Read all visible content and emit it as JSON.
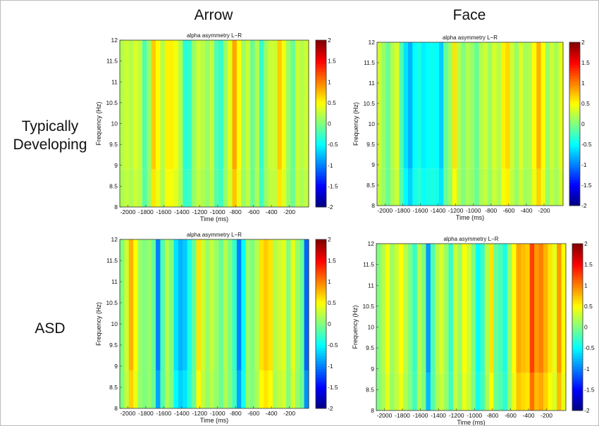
{
  "column_titles": [
    "Arrow",
    "Face"
  ],
  "row_titles": [
    [
      "Typically",
      "Developing"
    ],
    [
      "ASD"
    ]
  ],
  "chart_data": [
    {
      "type": "heatmap",
      "panel": "Typically Developing / Arrow",
      "title": "alpha asymmetry L−R",
      "xlabel": "Time (ms)",
      "ylabel": "Frequency (Hz)",
      "xlim": [
        -2090,
        15
      ],
      "ylim": [
        8,
        12
      ],
      "clim": [
        -2,
        2
      ],
      "colormap": "jet",
      "xticks": [
        -2000,
        -1800,
        -1600,
        -1400,
        -1200,
        -1000,
        -800,
        -600,
        -400,
        -200
      ],
      "yticks": [
        8,
        8.5,
        9,
        9.5,
        10,
        10.5,
        11,
        11.5,
        12
      ],
      "cticks": [
        -2,
        -1.5,
        -1,
        -0.5,
        0,
        0.5,
        1,
        1.5,
        2
      ],
      "values_by_time": [
        0.2,
        0.3,
        0.2,
        0.35,
        0.25,
        -0.2,
        0.1,
        0.7,
        0.5,
        0.2,
        0.55,
        0.55,
        0.45,
        0.2,
        -0.35,
        -0.3,
        0.1,
        0.3,
        0.2,
        0.1,
        0.25,
        -0.2,
        -0.3,
        0.1,
        0.4,
        0.85,
        0.5,
        0.1,
        0.3,
        -0.1,
        0.2,
        -0.3,
        0.1,
        0.3,
        0.3,
        0.7,
        0.45,
        0.1,
        -0.1,
        0.3,
        0.2,
        0.3
      ]
    },
    {
      "type": "heatmap",
      "panel": "Typically Developing / Face",
      "title": "alpha asymmetry L−R",
      "xlabel": "Time (ms)",
      "ylabel": "Frequency (Hz)",
      "xlim": [
        -2090,
        15
      ],
      "ylim": [
        8,
        12
      ],
      "clim": [
        -2,
        2
      ],
      "colormap": "jet",
      "xticks": [
        -2000,
        -1800,
        -1600,
        -1400,
        -1200,
        -1000,
        -800,
        -600,
        -400,
        -200
      ],
      "yticks": [
        8,
        8.5,
        9,
        9.5,
        10,
        10.5,
        11,
        11.5,
        12
      ],
      "cticks": [
        -2,
        -1.5,
        -1,
        -0.5,
        0,
        0.5,
        1,
        1.5,
        2
      ],
      "values_by_time": [
        0.3,
        0.1,
        -0.1,
        0.2,
        0.35,
        -0.2,
        -0.6,
        -0.8,
        -0.5,
        -0.4,
        -0.55,
        -0.5,
        -0.45,
        -0.5,
        -0.7,
        -0.1,
        0.1,
        0.6,
        0.2,
        0.0,
        0.2,
        0.1,
        -0.1,
        0.2,
        0.3,
        0.1,
        0.35,
        0.2,
        0.55,
        0.65,
        0.3,
        0.1,
        0.35,
        0.15,
        0.2,
        0.5,
        0.8,
        0.5,
        0.1,
        0.3,
        0.15,
        0.4
      ]
    },
    {
      "type": "heatmap",
      "panel": "ASD / Arrow",
      "title": "alpha asymmetry L−R",
      "xlabel": "Time (ms)",
      "ylabel": "Frequency (Hz)",
      "xlim": [
        -2090,
        15
      ],
      "ylim": [
        8,
        12
      ],
      "clim": [
        -2,
        2
      ],
      "colormap": "jet",
      "xticks": [
        -2000,
        -1800,
        -1600,
        -1400,
        -1200,
        -1000,
        -800,
        -600,
        -400,
        -200
      ],
      "yticks": [
        8,
        8.5,
        9,
        9.5,
        10,
        10.5,
        11,
        11.5,
        12
      ],
      "cticks": [
        -2,
        -1.5,
        -1,
        -0.5,
        0,
        0.5,
        1,
        1.5,
        2
      ],
      "values_by_time": [
        0.0,
        0.3,
        0.8,
        0.5,
        0.1,
        0.0,
        0.1,
        -0.1,
        -1.0,
        -0.2,
        0.2,
        0.0,
        -0.6,
        -0.8,
        -0.7,
        -0.4,
        -0.1,
        0.6,
        0.3,
        0.1,
        0.25,
        0.1,
        -0.1,
        0.2,
        0.0,
        -0.3,
        -1.0,
        -0.5,
        0.1,
        0.0,
        0.2,
        0.6,
        0.7,
        0.6,
        0.2,
        0.3,
        0.4,
        0.0,
        0.4,
        0.1,
        -0.1,
        -1.1
      ]
    },
    {
      "type": "heatmap",
      "panel": "ASD / Face",
      "title": "alpha asymmetry L−R",
      "xlabel": "Time (ms)",
      "ylabel": "Frequency (Hz)",
      "xlim": [
        -2090,
        15
      ],
      "ylim": [
        8,
        12
      ],
      "clim": [
        -2,
        2
      ],
      "colormap": "jet",
      "xticks": [
        -2000,
        -1800,
        -1600,
        -1400,
        -1200,
        -1000,
        -800,
        -600,
        -400,
        -200
      ],
      "yticks": [
        8,
        8.5,
        9,
        9.5,
        10,
        10.5,
        11,
        11.5,
        12
      ],
      "cticks": [
        -2,
        -1.5,
        -1,
        -0.5,
        0,
        0.5,
        1,
        1.5,
        2
      ],
      "values_by_time": [
        0.0,
        0.2,
        0.45,
        0.1,
        0.3,
        0.5,
        0.2,
        0.0,
        -0.3,
        0.2,
        0.0,
        -0.9,
        -0.2,
        0.2,
        0.35,
        0.1,
        -0.3,
        0.3,
        0.1,
        0.5,
        0.3,
        0.0,
        -0.5,
        -0.3,
        0.2,
        0.6,
        -0.1,
        -0.2,
        -0.4,
        0.1,
        0.5,
        0.85,
        0.75,
        0.7,
        1.25,
        0.9,
        1.0,
        0.8,
        0.6,
        0.4,
        0.9,
        0.5
      ]
    }
  ]
}
